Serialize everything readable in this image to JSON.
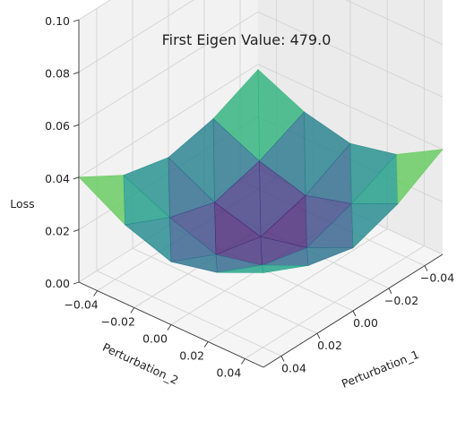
{
  "chart_data": {
    "type": "surface3d",
    "title": "First Eigen Value: 479.0",
    "xlabel": "Perturbation_1",
    "ylabel": "Perturbation_2",
    "zlabel": "Loss",
    "xlim": [
      -0.05,
      0.05
    ],
    "ylim": [
      -0.05,
      0.05
    ],
    "zlim": [
      0.0,
      0.1
    ],
    "xticks": [
      "−0.04",
      "−0.02",
      "0.00",
      "0.02",
      "0.04"
    ],
    "yticks": [
      "−0.04",
      "−0.02",
      "0.00",
      "0.02",
      "0.04"
    ],
    "zticks": [
      "0.00",
      "0.02",
      "0.04",
      "0.06",
      "0.08",
      "0.10"
    ],
    "grid": true,
    "colormap": "viridis",
    "surface": {
      "x": [
        -0.05,
        -0.025,
        0.0,
        0.025,
        0.05
      ],
      "y": [
        -0.05,
        -0.025,
        0.0,
        0.025,
        0.05
      ],
      "z": [
        [
          0.038,
          0.03,
          0.026,
          0.03,
          0.04
        ],
        [
          0.03,
          0.022,
          0.017,
          0.022,
          0.03
        ],
        [
          0.026,
          0.017,
          0.012,
          0.016,
          0.024
        ],
        [
          0.03,
          0.022,
          0.016,
          0.02,
          0.028
        ],
        [
          0.04,
          0.03,
          0.024,
          0.028,
          0.036
        ]
      ]
    }
  }
}
